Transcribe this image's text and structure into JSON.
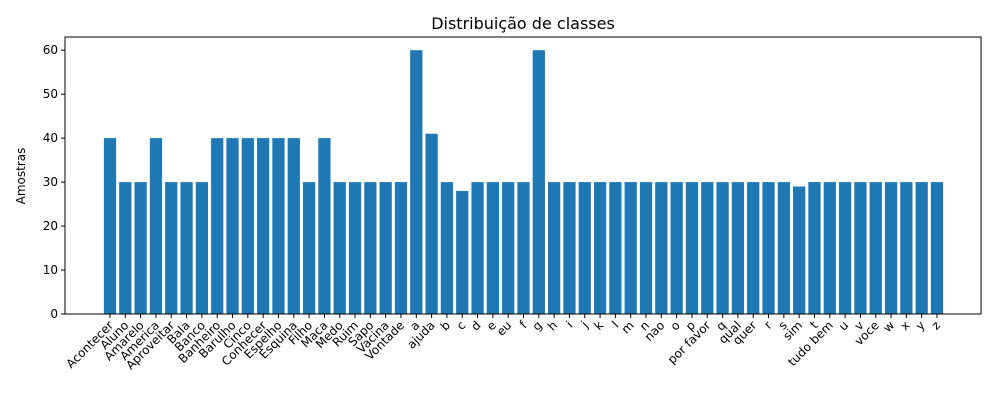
{
  "chart_data": {
    "type": "bar",
    "title": "Distribuição de classes",
    "xlabel": "",
    "ylabel": "Amostras",
    "ylim": [
      0,
      63
    ],
    "yticks": [
      0,
      10,
      20,
      30,
      40,
      50,
      60
    ],
    "bar_color": "#1f77b4",
    "grid": false,
    "categories": [
      "Acontecer",
      "Aluno",
      "Amarelo",
      "America",
      "Aproveitar",
      "Bala",
      "Banco",
      "Banheiro",
      "Barulho",
      "Cinco",
      "Conhecer",
      "Espelho",
      "Esquina",
      "Filho",
      "Maca",
      "Medo",
      "Ruim",
      "Sapo",
      "Vacina",
      "Vontade",
      "a",
      "ajuda",
      "b",
      "c",
      "d",
      "e",
      "eu",
      "f",
      "g",
      "h",
      "i",
      "j",
      "k",
      "l",
      "m",
      "n",
      "nao",
      "o",
      "p",
      "por favor",
      "q",
      "qual",
      "quer",
      "r",
      "s",
      "sim",
      "t",
      "tudo bem",
      "u",
      "v",
      "voce",
      "w",
      "x",
      "y",
      "z"
    ],
    "values": [
      40,
      30,
      30,
      40,
      30,
      30,
      30,
      40,
      40,
      40,
      40,
      40,
      40,
      30,
      40,
      30,
      30,
      30,
      30,
      30,
      60,
      41,
      30,
      28,
      30,
      30,
      30,
      30,
      60,
      30,
      30,
      30,
      30,
      30,
      30,
      30,
      30,
      30,
      30,
      30,
      30,
      30,
      30,
      30,
      30,
      29,
      30,
      30,
      30,
      30,
      30,
      30,
      30,
      30,
      30
    ]
  }
}
